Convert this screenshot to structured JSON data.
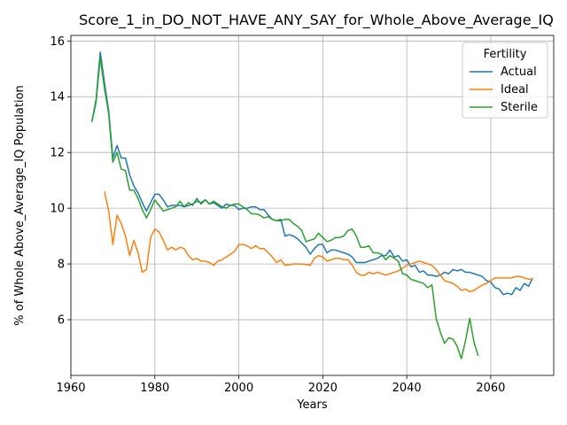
{
  "chart_data": {
    "type": "line",
    "title": "Score_1_in_DO_NOT_HAVE_ANY_SAY_for_Whole_Above_Average_IQ",
    "xlabel": "Years",
    "ylabel": "% of Whole Above_Average_IQ Population",
    "xlim": [
      1960,
      2075
    ],
    "ylim": [
      4.0,
      16.2
    ],
    "xticks": [
      1960,
      1980,
      2000,
      2020,
      2040,
      2060
    ],
    "yticks": [
      6,
      8,
      10,
      12,
      14,
      16
    ],
    "grid": true,
    "legend": {
      "title": "Fertility",
      "placement": "top-right"
    },
    "series": [
      {
        "name": "Actual",
        "color": "#1f77b4",
        "points": [
          [
            1965,
            13.1
          ],
          [
            1966,
            13.9
          ],
          [
            1967,
            15.6
          ],
          [
            1968,
            14.5
          ],
          [
            1969,
            13.5
          ],
          [
            1970,
            11.8
          ],
          [
            1971,
            12.25
          ],
          [
            1972,
            11.8
          ],
          [
            1973,
            11.8
          ],
          [
            1974,
            11.2
          ],
          [
            1975,
            10.8
          ],
          [
            1976,
            10.55
          ],
          [
            1977,
            10.2
          ],
          [
            1978,
            9.9
          ],
          [
            1979,
            10.2
          ],
          [
            1980,
            10.5
          ],
          [
            1981,
            10.5
          ],
          [
            1982,
            10.3
          ],
          [
            1983,
            10.05
          ],
          [
            1984,
            10.1
          ],
          [
            1985,
            10.1
          ],
          [
            1986,
            10.1
          ],
          [
            1987,
            10.05
          ],
          [
            1988,
            10.1
          ],
          [
            1989,
            10.15
          ],
          [
            1990,
            10.25
          ],
          [
            1991,
            10.2
          ],
          [
            1992,
            10.3
          ],
          [
            1993,
            10.15
          ],
          [
            1994,
            10.2
          ],
          [
            1995,
            10.1
          ],
          [
            1996,
            10.0
          ],
          [
            1997,
            10.15
          ],
          [
            1998,
            10.1
          ],
          [
            1999,
            10.1
          ],
          [
            2000,
            9.95
          ],
          [
            2001,
            10.0
          ],
          [
            2002,
            10.0
          ],
          [
            2003,
            10.05
          ],
          [
            2004,
            10.05
          ],
          [
            2005,
            9.95
          ],
          [
            2006,
            9.95
          ],
          [
            2007,
            9.75
          ],
          [
            2008,
            9.6
          ],
          [
            2009,
            9.55
          ],
          [
            2010,
            9.6
          ],
          [
            2011,
            9.0
          ],
          [
            2012,
            9.05
          ],
          [
            2013,
            9.0
          ],
          [
            2014,
            8.9
          ],
          [
            2015,
            8.75
          ],
          [
            2016,
            8.6
          ],
          [
            2017,
            8.35
          ],
          [
            2018,
            8.55
          ],
          [
            2019,
            8.7
          ],
          [
            2020,
            8.7
          ],
          [
            2021,
            8.4
          ],
          [
            2022,
            8.5
          ],
          [
            2023,
            8.5
          ],
          [
            2024,
            8.45
          ],
          [
            2025,
            8.4
          ],
          [
            2026,
            8.35
          ],
          [
            2027,
            8.25
          ],
          [
            2028,
            8.05
          ],
          [
            2029,
            8.05
          ],
          [
            2030,
            8.05
          ],
          [
            2031,
            8.1
          ],
          [
            2032,
            8.15
          ],
          [
            2033,
            8.2
          ],
          [
            2034,
            8.3
          ],
          [
            2035,
            8.3
          ],
          [
            2036,
            8.5
          ],
          [
            2037,
            8.25
          ],
          [
            2038,
            8.3
          ],
          [
            2039,
            8.1
          ],
          [
            2040,
            8.15
          ],
          [
            2041,
            7.9
          ],
          [
            2042,
            7.95
          ],
          [
            2043,
            7.7
          ],
          [
            2044,
            7.75
          ],
          [
            2045,
            7.6
          ],
          [
            2046,
            7.6
          ],
          [
            2047,
            7.55
          ],
          [
            2048,
            7.6
          ],
          [
            2049,
            7.7
          ],
          [
            2050,
            7.65
          ],
          [
            2051,
            7.8
          ],
          [
            2052,
            7.75
          ],
          [
            2053,
            7.8
          ],
          [
            2054,
            7.7
          ],
          [
            2055,
            7.7
          ],
          [
            2056,
            7.65
          ],
          [
            2057,
            7.6
          ],
          [
            2058,
            7.55
          ],
          [
            2059,
            7.4
          ],
          [
            2060,
            7.35
          ],
          [
            2061,
            7.15
          ],
          [
            2062,
            7.1
          ],
          [
            2063,
            6.9
          ],
          [
            2064,
            6.95
          ],
          [
            2065,
            6.9
          ],
          [
            2066,
            7.15
          ],
          [
            2067,
            7.05
          ],
          [
            2068,
            7.3
          ],
          [
            2069,
            7.2
          ],
          [
            2070,
            7.5
          ]
        ]
      },
      {
        "name": "Ideal",
        "color": "#ff7f0e",
        "points": [
          [
            1968,
            10.6
          ],
          [
            1969,
            9.9
          ],
          [
            1970,
            8.7
          ],
          [
            1971,
            9.75
          ],
          [
            1972,
            9.45
          ],
          [
            1973,
            9.0
          ],
          [
            1974,
            8.3
          ],
          [
            1975,
            8.85
          ],
          [
            1976,
            8.4
          ],
          [
            1977,
            7.7
          ],
          [
            1978,
            7.8
          ],
          [
            1979,
            8.95
          ],
          [
            1980,
            9.25
          ],
          [
            1981,
            9.15
          ],
          [
            1982,
            8.85
          ],
          [
            1983,
            8.5
          ],
          [
            1984,
            8.6
          ],
          [
            1985,
            8.5
          ],
          [
            1986,
            8.6
          ],
          [
            1987,
            8.55
          ],
          [
            1988,
            8.3
          ],
          [
            1989,
            8.15
          ],
          [
            1990,
            8.2
          ],
          [
            1991,
            8.1
          ],
          [
            1992,
            8.1
          ],
          [
            1993,
            8.05
          ],
          [
            1994,
            7.95
          ],
          [
            1995,
            8.1
          ],
          [
            1996,
            8.15
          ],
          [
            1997,
            8.25
          ],
          [
            1998,
            8.35
          ],
          [
            1999,
            8.45
          ],
          [
            2000,
            8.7
          ],
          [
            2001,
            8.7
          ],
          [
            2002,
            8.65
          ],
          [
            2003,
            8.55
          ],
          [
            2004,
            8.65
          ],
          [
            2005,
            8.55
          ],
          [
            2006,
            8.55
          ],
          [
            2007,
            8.4
          ],
          [
            2008,
            8.25
          ],
          [
            2009,
            8.05
          ],
          [
            2010,
            8.15
          ],
          [
            2011,
            7.95
          ],
          [
            2012,
            7.97
          ],
          [
            2013,
            8.0
          ],
          [
            2014,
            8.0
          ],
          [
            2015,
            8.0
          ],
          [
            2016,
            7.98
          ],
          [
            2017,
            7.95
          ],
          [
            2018,
            8.2
          ],
          [
            2019,
            8.3
          ],
          [
            2020,
            8.25
          ],
          [
            2021,
            8.1
          ],
          [
            2022,
            8.15
          ],
          [
            2023,
            8.2
          ],
          [
            2024,
            8.2
          ],
          [
            2025,
            8.15
          ],
          [
            2026,
            8.15
          ],
          [
            2027,
            7.95
          ],
          [
            2028,
            7.7
          ],
          [
            2029,
            7.6
          ],
          [
            2030,
            7.6
          ],
          [
            2031,
            7.7
          ],
          [
            2032,
            7.65
          ],
          [
            2033,
            7.7
          ],
          [
            2034,
            7.65
          ],
          [
            2035,
            7.6
          ],
          [
            2036,
            7.65
          ],
          [
            2037,
            7.7
          ],
          [
            2038,
            7.75
          ],
          [
            2039,
            7.85
          ],
          [
            2040,
            7.95
          ],
          [
            2041,
            8.0
          ],
          [
            2042,
            8.05
          ],
          [
            2043,
            8.1
          ],
          [
            2044,
            8.05
          ],
          [
            2045,
            8.0
          ],
          [
            2046,
            7.95
          ],
          [
            2047,
            7.8
          ],
          [
            2048,
            7.6
          ],
          [
            2049,
            7.4
          ],
          [
            2050,
            7.35
          ],
          [
            2051,
            7.3
          ],
          [
            2052,
            7.2
          ],
          [
            2053,
            7.05
          ],
          [
            2054,
            7.1
          ],
          [
            2055,
            7.0
          ],
          [
            2056,
            7.05
          ],
          [
            2057,
            7.15
          ],
          [
            2058,
            7.25
          ],
          [
            2059,
            7.3
          ],
          [
            2060,
            7.4
          ],
          [
            2061,
            7.5
          ],
          [
            2062,
            7.5
          ],
          [
            2063,
            7.5
          ],
          [
            2064,
            7.5
          ],
          [
            2065,
            7.5
          ],
          [
            2066,
            7.55
          ],
          [
            2067,
            7.55
          ],
          [
            2068,
            7.5
          ],
          [
            2069,
            7.45
          ],
          [
            2070,
            7.45
          ]
        ]
      },
      {
        "name": "Sterile",
        "color": "#2ca02c",
        "points": [
          [
            1965,
            13.1
          ],
          [
            1966,
            13.8
          ],
          [
            1967,
            15.4
          ],
          [
            1968,
            14.3
          ],
          [
            1969,
            13.4
          ],
          [
            1970,
            11.65
          ],
          [
            1971,
            12.0
          ],
          [
            1972,
            11.4
          ],
          [
            1973,
            11.35
          ],
          [
            1974,
            10.65
          ],
          [
            1975,
            10.65
          ],
          [
            1976,
            10.35
          ],
          [
            1977,
            9.95
          ],
          [
            1978,
            9.65
          ],
          [
            1979,
            9.95
          ],
          [
            1980,
            10.3
          ],
          [
            1981,
            10.1
          ],
          [
            1982,
            9.9
          ],
          [
            1983,
            9.95
          ],
          [
            1984,
            10.0
          ],
          [
            1985,
            10.05
          ],
          [
            1986,
            10.25
          ],
          [
            1987,
            10.05
          ],
          [
            1988,
            10.2
          ],
          [
            1989,
            10.1
          ],
          [
            1990,
            10.35
          ],
          [
            1991,
            10.15
          ],
          [
            1992,
            10.3
          ],
          [
            1993,
            10.15
          ],
          [
            1994,
            10.25
          ],
          [
            1995,
            10.15
          ],
          [
            1996,
            10.05
          ],
          [
            1997,
            10.0
          ],
          [
            1998,
            10.1
          ],
          [
            1999,
            10.15
          ],
          [
            2000,
            10.15
          ],
          [
            2001,
            10.05
          ],
          [
            2002,
            9.95
          ],
          [
            2003,
            9.8
          ],
          [
            2004,
            9.8
          ],
          [
            2005,
            9.75
          ],
          [
            2006,
            9.65
          ],
          [
            2007,
            9.7
          ],
          [
            2008,
            9.6
          ],
          [
            2009,
            9.55
          ],
          [
            2010,
            9.55
          ],
          [
            2011,
            9.6
          ],
          [
            2012,
            9.6
          ],
          [
            2013,
            9.45
          ],
          [
            2014,
            9.35
          ],
          [
            2015,
            9.2
          ],
          [
            2016,
            8.8
          ],
          [
            2017,
            8.85
          ],
          [
            2018,
            8.9
          ],
          [
            2019,
            9.1
          ],
          [
            2020,
            8.95
          ],
          [
            2021,
            8.8
          ],
          [
            2022,
            8.85
          ],
          [
            2023,
            8.95
          ],
          [
            2024,
            8.95
          ],
          [
            2025,
            9.0
          ],
          [
            2026,
            9.2
          ],
          [
            2027,
            9.25
          ],
          [
            2028,
            9.0
          ],
          [
            2029,
            8.6
          ],
          [
            2030,
            8.6
          ],
          [
            2031,
            8.65
          ],
          [
            2032,
            8.4
          ],
          [
            2033,
            8.4
          ],
          [
            2034,
            8.35
          ],
          [
            2035,
            8.15
          ],
          [
            2036,
            8.3
          ],
          [
            2037,
            8.2
          ],
          [
            2038,
            8.1
          ],
          [
            2039,
            7.65
          ],
          [
            2040,
            7.6
          ],
          [
            2041,
            7.45
          ],
          [
            2042,
            7.4
          ],
          [
            2043,
            7.35
          ],
          [
            2044,
            7.3
          ],
          [
            2045,
            7.15
          ],
          [
            2046,
            7.25
          ],
          [
            2047,
            6.05
          ],
          [
            2048,
            5.55
          ],
          [
            2049,
            5.15
          ],
          [
            2050,
            5.35
          ],
          [
            2051,
            5.3
          ],
          [
            2052,
            5.05
          ],
          [
            2053,
            4.6
          ],
          [
            2054,
            5.25
          ],
          [
            2055,
            6.05
          ],
          [
            2056,
            5.2
          ],
          [
            2057,
            4.7
          ]
        ]
      }
    ]
  }
}
